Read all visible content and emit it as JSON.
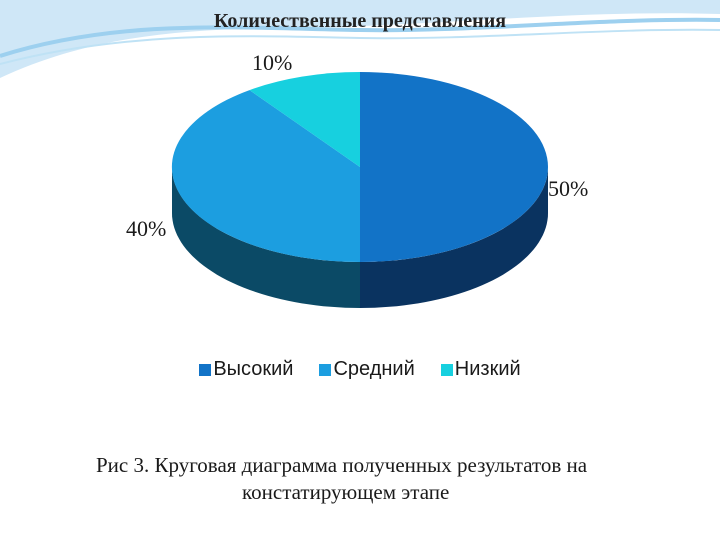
{
  "chart_data": {
    "type": "pie",
    "title": "Количественные представления",
    "categories": [
      "Высокий",
      "Средний",
      "Низкий"
    ],
    "values": [
      50,
      40,
      10
    ],
    "value_labels": [
      "50%",
      "40%",
      "10%"
    ],
    "colors": [
      "#1273c7",
      "#1c9ee0",
      "#17d0df"
    ],
    "side_colors": [
      "#0a3360",
      "#0b4a66",
      "#0a5f66"
    ],
    "legend_position": "bottom",
    "style": "3d"
  },
  "caption": {
    "line1": "Рис 3. Круговая диаграмма полученных результатов на",
    "line2": "констатирующем этапе"
  }
}
